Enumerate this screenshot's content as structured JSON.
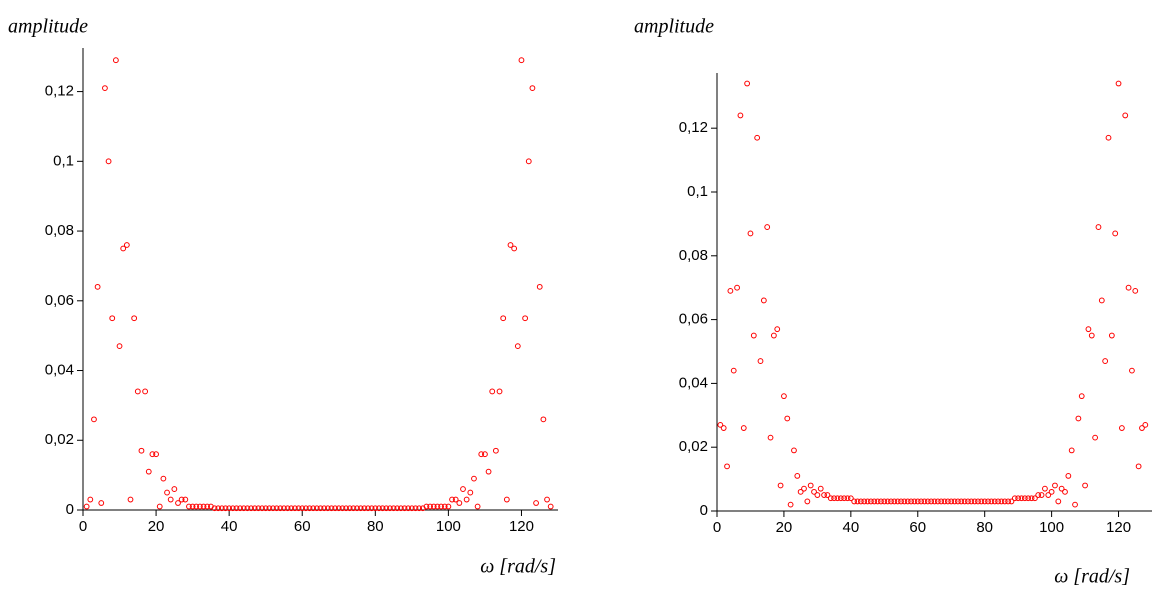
{
  "chart_data": [
    {
      "type": "scatter",
      "title": "amplitude",
      "x_label": "ω [rad/s]",
      "color": "#ff0000",
      "x": [
        1,
        2,
        3,
        4,
        5,
        6,
        7,
        8,
        9,
        10,
        11,
        12,
        13,
        14,
        15,
        16,
        17,
        18,
        19,
        20,
        21,
        22,
        23,
        24,
        25,
        26,
        27,
        28,
        29,
        30,
        31,
        32,
        33,
        34,
        35,
        36,
        37,
        38,
        39,
        40,
        41,
        42,
        43,
        44,
        45,
        46,
        47,
        48,
        49,
        50,
        51,
        52,
        53,
        54,
        55,
        56,
        57,
        58,
        59,
        60,
        61,
        62,
        63,
        64,
        65,
        66,
        67,
        68,
        69,
        70,
        71,
        72,
        73,
        74,
        75,
        76,
        77,
        78,
        79,
        80,
        81,
        82,
        83,
        84,
        85,
        86,
        87,
        88,
        89,
        90,
        91,
        92,
        93,
        94,
        95,
        96,
        97,
        98,
        99,
        100,
        101,
        102,
        103,
        104,
        105,
        106,
        107,
        108,
        109,
        110,
        111,
        112,
        113,
        114,
        115,
        116,
        117,
        118,
        119,
        120,
        121,
        122,
        123,
        124,
        125,
        126,
        127,
        128
      ],
      "values": [
        0.001,
        0.003,
        0.026,
        0.064,
        0.002,
        0.121,
        0.1,
        0.055,
        0.129,
        0.047,
        0.075,
        0.076,
        0.003,
        0.055,
        0.034,
        0.017,
        0.034,
        0.011,
        0.016,
        0.016,
        0.001,
        0.009,
        0.005,
        0.003,
        0.006,
        0.002,
        0.003,
        0.003,
        0.001,
        0.001,
        0.001,
        0.001,
        0.001,
        0.001,
        0.001,
        0.0005,
        0.0005,
        0.0005,
        0.0005,
        0.0005,
        0.0005,
        0.0005,
        0.0005,
        0.0005,
        0.0005,
        0.0005,
        0.0005,
        0.0005,
        0.0005,
        0.0005,
        0.0005,
        0.0005,
        0.0005,
        0.0005,
        0.0005,
        0.0005,
        0.0005,
        0.0005,
        0.0005,
        0.0005,
        0.0005,
        0.0005,
        0.0005,
        0.0005,
        0.0005,
        0.0005,
        0.0005,
        0.0005,
        0.0005,
        0.0005,
        0.0005,
        0.0005,
        0.0005,
        0.0005,
        0.0005,
        0.0005,
        0.0005,
        0.0005,
        0.0005,
        0.0005,
        0.0005,
        0.0005,
        0.0005,
        0.0005,
        0.0005,
        0.0005,
        0.0005,
        0.0005,
        0.0005,
        0.0005,
        0.0005,
        0.0005,
        0.0005,
        0.001,
        0.001,
        0.001,
        0.001,
        0.001,
        0.001,
        0.001,
        0.003,
        0.003,
        0.002,
        0.006,
        0.003,
        0.005,
        0.009,
        0.001,
        0.016,
        0.016,
        0.011,
        0.034,
        0.017,
        0.034,
        0.055,
        0.003,
        0.076,
        0.075,
        0.047,
        0.129,
        0.055,
        0.1,
        0.121,
        0.002,
        0.064,
        0.026,
        0.003,
        0.001
      ],
      "xlim": [
        0,
        130
      ],
      "xticks": [
        0,
        20,
        40,
        60,
        80,
        100,
        120
      ],
      "ylim": [
        0,
        0.1325
      ],
      "yticks": [
        0,
        {
          "value": 0.02,
          "label": "0,02"
        },
        {
          "value": 0.04,
          "label": "0,04"
        },
        {
          "value": 0.06,
          "label": "0,06"
        },
        {
          "value": 0.08,
          "label": "0,08"
        },
        {
          "value": 0.1,
          "label": "0,1"
        },
        {
          "value": 0.12,
          "label": "0,12"
        }
      ]
    },
    {
      "type": "scatter",
      "title": "amplitude",
      "x_label": "ω [rad/s]",
      "color": "#ff0000",
      "x": [
        1,
        2,
        3,
        4,
        5,
        6,
        7,
        8,
        9,
        10,
        11,
        12,
        13,
        14,
        15,
        16,
        17,
        18,
        19,
        20,
        21,
        22,
        23,
        24,
        25,
        26,
        27,
        28,
        29,
        30,
        31,
        32,
        33,
        34,
        35,
        36,
        37,
        38,
        39,
        40,
        41,
        42,
        43,
        44,
        45,
        46,
        47,
        48,
        49,
        50,
        51,
        52,
        53,
        54,
        55,
        56,
        57,
        58,
        59,
        60,
        61,
        62,
        63,
        64,
        65,
        66,
        67,
        68,
        69,
        70,
        71,
        72,
        73,
        74,
        75,
        76,
        77,
        78,
        79,
        80,
        81,
        82,
        83,
        84,
        85,
        86,
        87,
        88,
        89,
        90,
        91,
        92,
        93,
        94,
        95,
        96,
        97,
        98,
        99,
        100,
        101,
        102,
        103,
        104,
        105,
        106,
        107,
        108,
        109,
        110,
        111,
        112,
        113,
        114,
        115,
        116,
        117,
        118,
        119,
        120,
        121,
        122,
        123,
        124,
        125,
        126,
        127,
        128
      ],
      "values": [
        0.027,
        0.026,
        0.014,
        0.069,
        0.044,
        0.07,
        0.124,
        0.026,
        0.134,
        0.087,
        0.055,
        0.117,
        0.047,
        0.066,
        0.089,
        0.023,
        0.055,
        0.057,
        0.008,
        0.036,
        0.029,
        0.002,
        0.019,
        0.011,
        0.006,
        0.007,
        0.003,
        0.008,
        0.006,
        0.005,
        0.007,
        0.005,
        0.005,
        0.004,
        0.004,
        0.004,
        0.004,
        0.004,
        0.004,
        0.004,
        0.003,
        0.003,
        0.003,
        0.003,
        0.003,
        0.003,
        0.003,
        0.003,
        0.003,
        0.003,
        0.003,
        0.003,
        0.003,
        0.003,
        0.003,
        0.003,
        0.003,
        0.003,
        0.003,
        0.003,
        0.003,
        0.003,
        0.003,
        0.003,
        0.003,
        0.003,
        0.003,
        0.003,
        0.003,
        0.003,
        0.003,
        0.003,
        0.003,
        0.003,
        0.003,
        0.003,
        0.003,
        0.003,
        0.003,
        0.003,
        0.003,
        0.003,
        0.003,
        0.003,
        0.003,
        0.003,
        0.003,
        0.003,
        0.004,
        0.004,
        0.004,
        0.004,
        0.004,
        0.004,
        0.004,
        0.005,
        0.005,
        0.007,
        0.005,
        0.006,
        0.008,
        0.003,
        0.007,
        0.006,
        0.011,
        0.019,
        0.002,
        0.029,
        0.036,
        0.008,
        0.057,
        0.055,
        0.023,
        0.089,
        0.066,
        0.047,
        0.117,
        0.055,
        0.087,
        0.134,
        0.026,
        0.124,
        0.07,
        0.044,
        0.069,
        0.014,
        0.026,
        0.027
      ],
      "xlim": [
        0,
        130
      ],
      "xticks": [
        0,
        20,
        40,
        60,
        80,
        100,
        120
      ],
      "ylim": [
        0,
        0.1373
      ],
      "yticks": [
        0,
        {
          "value": 0.02,
          "label": "0,02"
        },
        {
          "value": 0.04,
          "label": "0,04"
        },
        {
          "value": 0.06,
          "label": "0,06"
        },
        {
          "value": 0.08,
          "label": "0,08"
        },
        {
          "value": 0.1,
          "label": "0,1"
        },
        {
          "value": 0.12,
          "label": "0,12"
        }
      ]
    }
  ]
}
